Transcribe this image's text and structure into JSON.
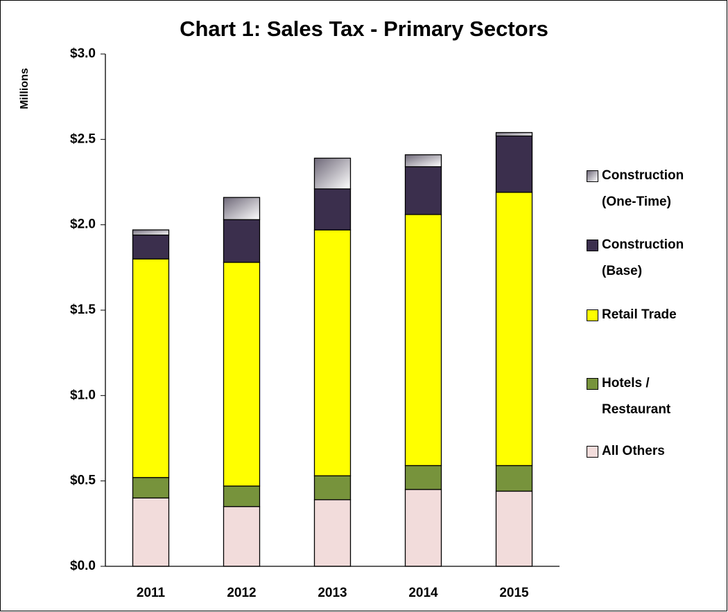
{
  "chart_data": {
    "type": "stacked_bar",
    "title": "Chart 1: Sales Tax - Primary Sectors",
    "y_label": "Millions",
    "categories": [
      "2011",
      "2012",
      "2013",
      "2014",
      "2015"
    ],
    "series": [
      {
        "name": "All Others",
        "color": "#f2dcdb",
        "values": [
          0.4,
          0.35,
          0.39,
          0.45,
          0.44
        ]
      },
      {
        "name": "Hotels / Restaurant",
        "color": "#77933c",
        "values": [
          0.12,
          0.12,
          0.14,
          0.14,
          0.15
        ]
      },
      {
        "name": "Retail Trade",
        "color": "#ffff00",
        "values": [
          1.28,
          1.31,
          1.44,
          1.47,
          1.6
        ]
      },
      {
        "name": "Construction (Base)",
        "color": "#3b2f4d",
        "values": [
          0.14,
          0.25,
          0.24,
          0.28,
          0.33
        ]
      },
      {
        "name": "Construction (One-Time)",
        "color": "#6e6878",
        "values": [
          0.03,
          0.13,
          0.18,
          0.07,
          0.02
        ]
      }
    ],
    "ylim": [
      0,
      3
    ],
    "yticks": [
      {
        "value": 0,
        "label": "$0.0"
      },
      {
        "value": 0.5,
        "label": "$0.5"
      },
      {
        "value": 1,
        "label": "$1.0"
      },
      {
        "value": 1.5,
        "label": "$1.5"
      },
      {
        "value": 2,
        "label": "$2.0"
      },
      {
        "value": 2.5,
        "label": "$2.5"
      },
      {
        "value": 3,
        "label": "$3.0"
      }
    ],
    "legend": "right"
  }
}
